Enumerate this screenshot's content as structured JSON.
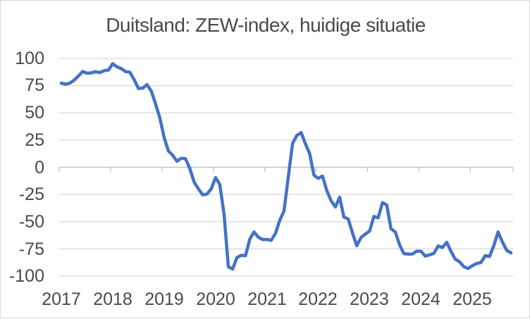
{
  "chart_data": {
    "type": "line",
    "title": "Duitsland: ZEW-index, huidige situatie",
    "x_unit": "month",
    "x_start": "2017-01",
    "x_end": "2025-10",
    "x_tick_labels": [
      "2017",
      "2018",
      "2019",
      "2020",
      "2021",
      "2022",
      "2023",
      "2024",
      "2025"
    ],
    "y_tick_labels": [
      "100",
      "75",
      "50",
      "25",
      "0",
      "-25",
      "-50",
      "-75",
      "-100"
    ],
    "y_tick_values": [
      100,
      75,
      50,
      25,
      0,
      -25,
      -50,
      -75,
      -100
    ],
    "ylim": [
      -100,
      100
    ],
    "grid": true,
    "legend": "none",
    "colors": {
      "line": "#4472c4",
      "gridline": "#d9d9d9",
      "axis": "#bfbfbf",
      "text": "#4a4a4a",
      "background": "#ffffff",
      "border": "#d9d9d9"
    },
    "series": [
      {
        "values_by_year": {
          "2017": [
            77.3,
            76.4,
            77.3,
            80.1,
            83.9,
            88.0,
            86.4,
            86.7,
            87.9,
            87.0,
            88.8,
            89.3
          ],
          "2018": [
            95.2,
            92.3,
            90.7,
            87.9,
            87.4,
            80.6,
            72.4,
            72.6,
            76.0,
            70.1,
            58.2,
            45.3
          ],
          "2019": [
            27.6,
            15.0,
            11.1,
            5.5,
            8.2,
            7.8,
            -1.1,
            -13.5,
            -19.9,
            -25.3,
            -24.7,
            -19.9
          ],
          "2020": [
            -9.5,
            -15.7,
            -43.1,
            -91.5,
            -93.5,
            -83.1,
            -80.9,
            -81.3,
            -66.2,
            -59.5,
            -64.3,
            -66.5
          ],
          "2021": [
            -66.4,
            -67.2,
            -61.0,
            -48.8,
            -40.1,
            -9.1,
            21.9,
            29.3,
            31.9,
            21.6,
            12.5,
            -7.4
          ],
          "2022": [
            -10.2,
            -8.1,
            -21.4,
            -30.8,
            -36.5,
            -27.6,
            -45.8,
            -47.6,
            -60.5,
            -72.2,
            -64.5,
            -61.4
          ],
          "2023": [
            -58.6,
            -45.1,
            -46.5,
            -32.5,
            -34.8,
            -56.5,
            -59.5,
            -71.3,
            -79.4,
            -79.9,
            -79.8,
            -77.1
          ],
          "2024": [
            -77.3,
            -81.7,
            -80.5,
            -79.2,
            -72.3,
            -73.8,
            -68.9,
            -77.3,
            -84.5,
            -86.9,
            -91.4,
            -93.1
          ],
          "2025": [
            -90.4,
            -88.5,
            -87.6,
            -81.2,
            -82.0,
            -72.0,
            -59.5,
            -68.6,
            -76.4,
            -78.7
          ]
        }
      }
    ]
  }
}
